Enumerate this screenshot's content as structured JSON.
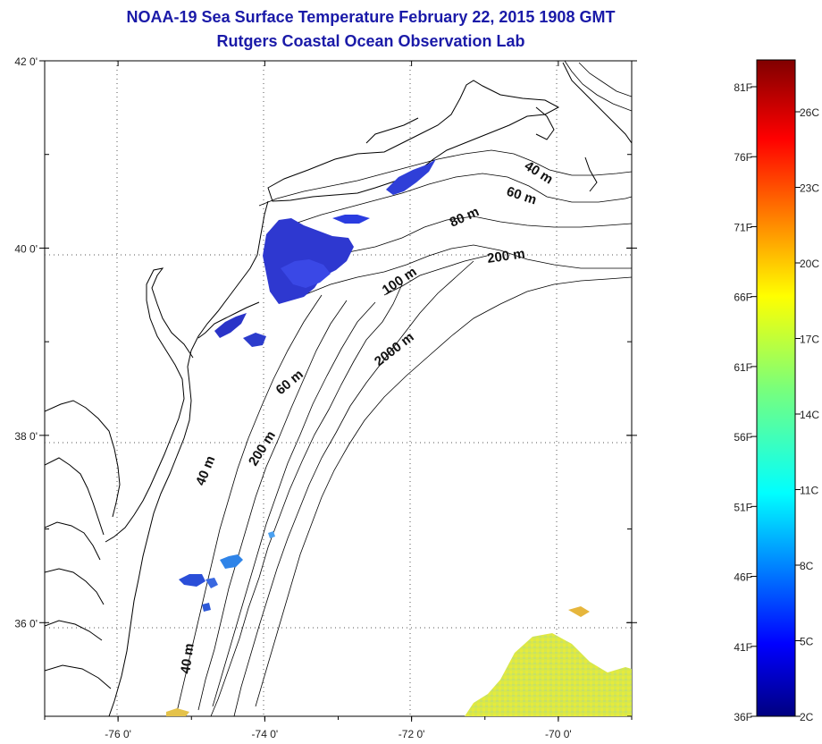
{
  "title": "NOAA-19 Sea Surface Temperature February 22, 2015 1908 GMT",
  "subtitle": "Rutgers Coastal Ocean Observation Lab",
  "map": {
    "lon_ticks": [
      {
        "value": -76,
        "label": "-76 0'"
      },
      {
        "value": -74,
        "label": "-74 0'"
      },
      {
        "value": -72,
        "label": "-72 0'"
      },
      {
        "value": -70,
        "label": "-70 0'"
      }
    ],
    "lat_ticks": [
      {
        "value": 42,
        "label": "42 0'"
      },
      {
        "value": 40,
        "label": "40 0'"
      },
      {
        "value": 38,
        "label": "38 0'"
      },
      {
        "value": 36,
        "label": "36 0'"
      }
    ],
    "lon_range": [
      -77.0,
      -69.0
    ],
    "lat_range": [
      35.0,
      42.0
    ],
    "isobath_labels": [
      "40 m",
      "60 m",
      "80 m",
      "200 m",
      "100 m",
      "2000 m",
      "60 m",
      "200 m",
      "40 m",
      "40 m"
    ]
  },
  "colorbar": {
    "fahrenheit_labels": [
      "81F",
      "76F",
      "71F",
      "66F",
      "61F",
      "56F",
      "51F",
      "46F",
      "41F",
      "36F"
    ],
    "celsius_labels": [
      "26C",
      "23C",
      "20C",
      "17C",
      "14C",
      "11C",
      "8C",
      "5C",
      "2C"
    ]
  }
}
